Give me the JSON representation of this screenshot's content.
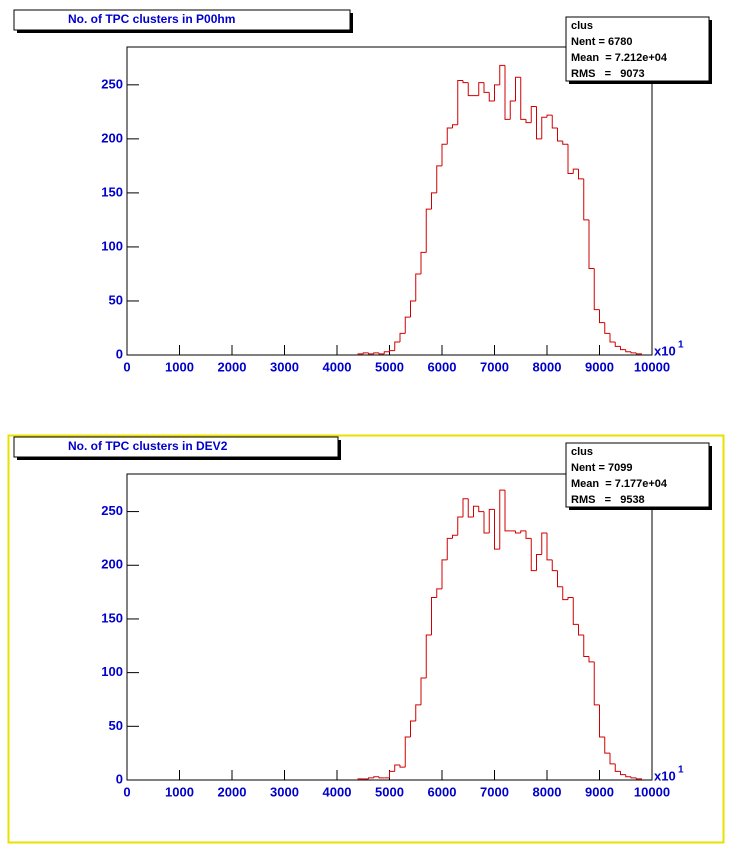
{
  "chart_data": [
    {
      "type": "histogram",
      "title": "No. of TPC clusters in P00hm",
      "color": "#d00000",
      "bins": [
        4400,
        4500,
        4600,
        4700,
        4800,
        4900,
        5000,
        5100,
        5200,
        5300,
        5400,
        5500,
        5600,
        5700,
        5800,
        5900,
        6000,
        6100,
        6200,
        6300,
        6400,
        6500,
        6600,
        6700,
        6800,
        6900,
        7000,
        7100,
        7200,
        7300,
        7400,
        7500,
        7600,
        7700,
        7800,
        7900,
        8000,
        8100,
        8200,
        8300,
        8400,
        8500,
        8600,
        8700,
        8800,
        8900,
        9000,
        9100,
        9200,
        9300,
        9400,
        9500,
        9600,
        9700,
        9800
      ],
      "values": [
        1,
        2,
        1,
        2,
        1,
        3,
        4,
        12,
        20,
        35,
        50,
        75,
        95,
        135,
        150,
        175,
        195,
        210,
        213,
        254,
        252,
        240,
        240,
        252,
        243,
        235,
        250,
        268,
        218,
        235,
        257,
        218,
        215,
        230,
        200,
        220,
        222,
        210,
        198,
        195,
        168,
        172,
        163,
        125,
        80,
        42,
        30,
        20,
        12,
        8,
        5,
        3,
        2,
        1
      ],
      "xlim": [
        0,
        10000
      ],
      "ylim": [
        0,
        285
      ],
      "xticks": [
        0,
        1000,
        2000,
        3000,
        4000,
        5000,
        6000,
        7000,
        8000,
        9000,
        10000
      ],
      "yticks": [
        0,
        50,
        100,
        150,
        200,
        250
      ],
      "x_multiplier": {
        "base": "x10",
        "exponent": "1"
      },
      "stats": {
        "name": "clus",
        "lines": [
          "Nent = 6780",
          "Mean  = 7.212e+04",
          "RMS   =   9073"
        ]
      }
    },
    {
      "type": "histogram",
      "title": "No. of TPC clusters in DEV2",
      "color": "#d00000",
      "bins": [
        4400,
        4500,
        4600,
        4700,
        4800,
        4900,
        5000,
        5100,
        5200,
        5300,
        5400,
        5500,
        5600,
        5700,
        5800,
        5900,
        6000,
        6100,
        6200,
        6300,
        6400,
        6500,
        6600,
        6700,
        6800,
        6900,
        7000,
        7100,
        7200,
        7300,
        7400,
        7500,
        7600,
        7700,
        7800,
        7900,
        8000,
        8100,
        8200,
        8300,
        8400,
        8500,
        8600,
        8700,
        8800,
        8900,
        9000,
        9100,
        9200,
        9300,
        9400,
        9500,
        9600,
        9700,
        9800
      ],
      "values": [
        1,
        1,
        2,
        3,
        2,
        2,
        8,
        14,
        12,
        40,
        55,
        70,
        95,
        135,
        170,
        178,
        205,
        225,
        228,
        245,
        262,
        245,
        255,
        250,
        230,
        252,
        215,
        270,
        232,
        232,
        230,
        232,
        225,
        195,
        210,
        230,
        205,
        195,
        180,
        168,
        170,
        145,
        135,
        115,
        110,
        70,
        40,
        25,
        15,
        8,
        5,
        3,
        2,
        1
      ],
      "xlim": [
        0,
        10000
      ],
      "ylim": [
        0,
        285
      ],
      "xticks": [
        0,
        1000,
        2000,
        3000,
        4000,
        5000,
        6000,
        7000,
        8000,
        9000,
        10000
      ],
      "yticks": [
        0,
        50,
        100,
        150,
        200,
        250
      ],
      "x_multiplier": {
        "base": "x10",
        "exponent": "1"
      },
      "stats": {
        "name": "clus",
        "lines": [
          "Nent = 7099",
          "Mean  = 7.177e+04",
          "RMS   =   9538"
        ]
      }
    }
  ]
}
